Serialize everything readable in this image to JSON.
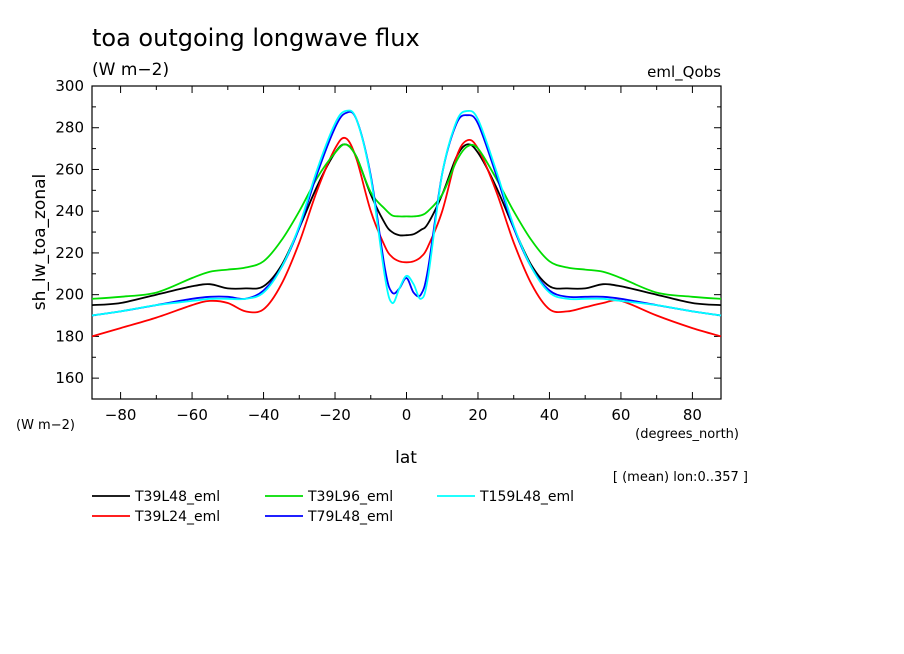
{
  "header": {
    "title": "toa outgoing longwave flux",
    "units": "(W m−2)",
    "experiment": "eml_Qobs"
  },
  "footer": {
    "note": "[ (mean) lon:0..357 ]"
  },
  "chart_data": {
    "type": "line",
    "title": "toa outgoing longwave flux",
    "subtitle": "(W m−2)",
    "xlabel": "lat",
    "xunits": "(degrees_north)",
    "ylabel": "sh_lw_toa_zonal",
    "yunits": "(W m−2)",
    "xlim": [
      -88,
      88
    ],
    "ylim": [
      150,
      300
    ],
    "xticks": [
      -80,
      -60,
      -40,
      -20,
      0,
      20,
      40,
      60,
      80
    ],
    "xtick_labels": [
      "−80",
      "−60",
      "−40",
      "−20",
      "0",
      "20",
      "40",
      "60",
      "80"
    ],
    "yticks": [
      160,
      180,
      200,
      220,
      240,
      260,
      280,
      300
    ],
    "ytick_labels": [
      "160",
      "180",
      "200",
      "220",
      "240",
      "260",
      "280",
      "300"
    ],
    "grid": false,
    "legend_position": "bottom",
    "x": [
      -88,
      -80,
      -70,
      -60,
      -55,
      -50,
      -45,
      -40,
      -35,
      -30,
      -25,
      -20,
      -17,
      -14,
      -10,
      -6,
      -4,
      -2,
      0,
      2,
      4,
      6,
      10,
      14,
      17,
      20,
      25,
      30,
      35,
      40,
      45,
      50,
      55,
      60,
      70,
      80,
      88
    ],
    "series": [
      {
        "name": "T39L48_eml",
        "color": "#000000",
        "values": [
          195,
          196,
          200,
          204,
          205,
          203,
          203,
          204,
          214,
          232,
          252,
          268,
          272,
          266,
          248,
          234,
          230,
          228.5,
          228.5,
          229,
          231,
          234,
          248,
          266,
          272,
          268,
          252,
          232,
          214,
          204,
          203,
          203,
          205,
          204,
          200,
          196,
          195
        ]
      },
      {
        "name": "T39L24_eml",
        "color": "#ff0000",
        "values": [
          180,
          184,
          189,
          195,
          197,
          196,
          192,
          193,
          205,
          225,
          250,
          270,
          275,
          265,
          240,
          223,
          218,
          216,
          215.5,
          216,
          218,
          223,
          240,
          266,
          274,
          270,
          250,
          225,
          205,
          193,
          192,
          194,
          196,
          197,
          190,
          184,
          180
        ]
      },
      {
        "name": "T39L96_eml",
        "color": "#00dd00",
        "values": [
          198,
          199,
          201,
          208,
          211,
          212,
          213,
          216,
          226,
          240,
          256,
          268,
          272,
          266,
          249,
          241,
          238,
          237.5,
          237.5,
          237.5,
          238,
          240,
          248,
          264,
          271,
          270,
          256,
          240,
          226,
          216,
          213,
          212,
          211,
          208,
          201,
          199,
          198
        ]
      },
      {
        "name": "T79L48_eml",
        "color": "#0000ff",
        "values": [
          190,
          192,
          195,
          198,
          199,
          199,
          198,
          202,
          213,
          232,
          258,
          280,
          287,
          284,
          257,
          212,
          201,
          203,
          208,
          201,
          200,
          212,
          258,
          282,
          286,
          282,
          258,
          232,
          213,
          202,
          199,
          199,
          199,
          198,
          195,
          192,
          190
        ]
      },
      {
        "name": "T159L48_eml",
        "color": "#00ffff",
        "values": [
          190,
          192,
          195,
          197,
          198,
          198,
          198,
          201,
          213,
          233,
          260,
          282,
          288,
          284,
          256,
          208,
          196,
          203,
          209,
          205,
          198,
          208,
          258,
          283,
          288,
          284,
          260,
          233,
          213,
          201,
          198,
          198,
          198,
          197,
          195,
          192,
          190
        ]
      }
    ]
  }
}
